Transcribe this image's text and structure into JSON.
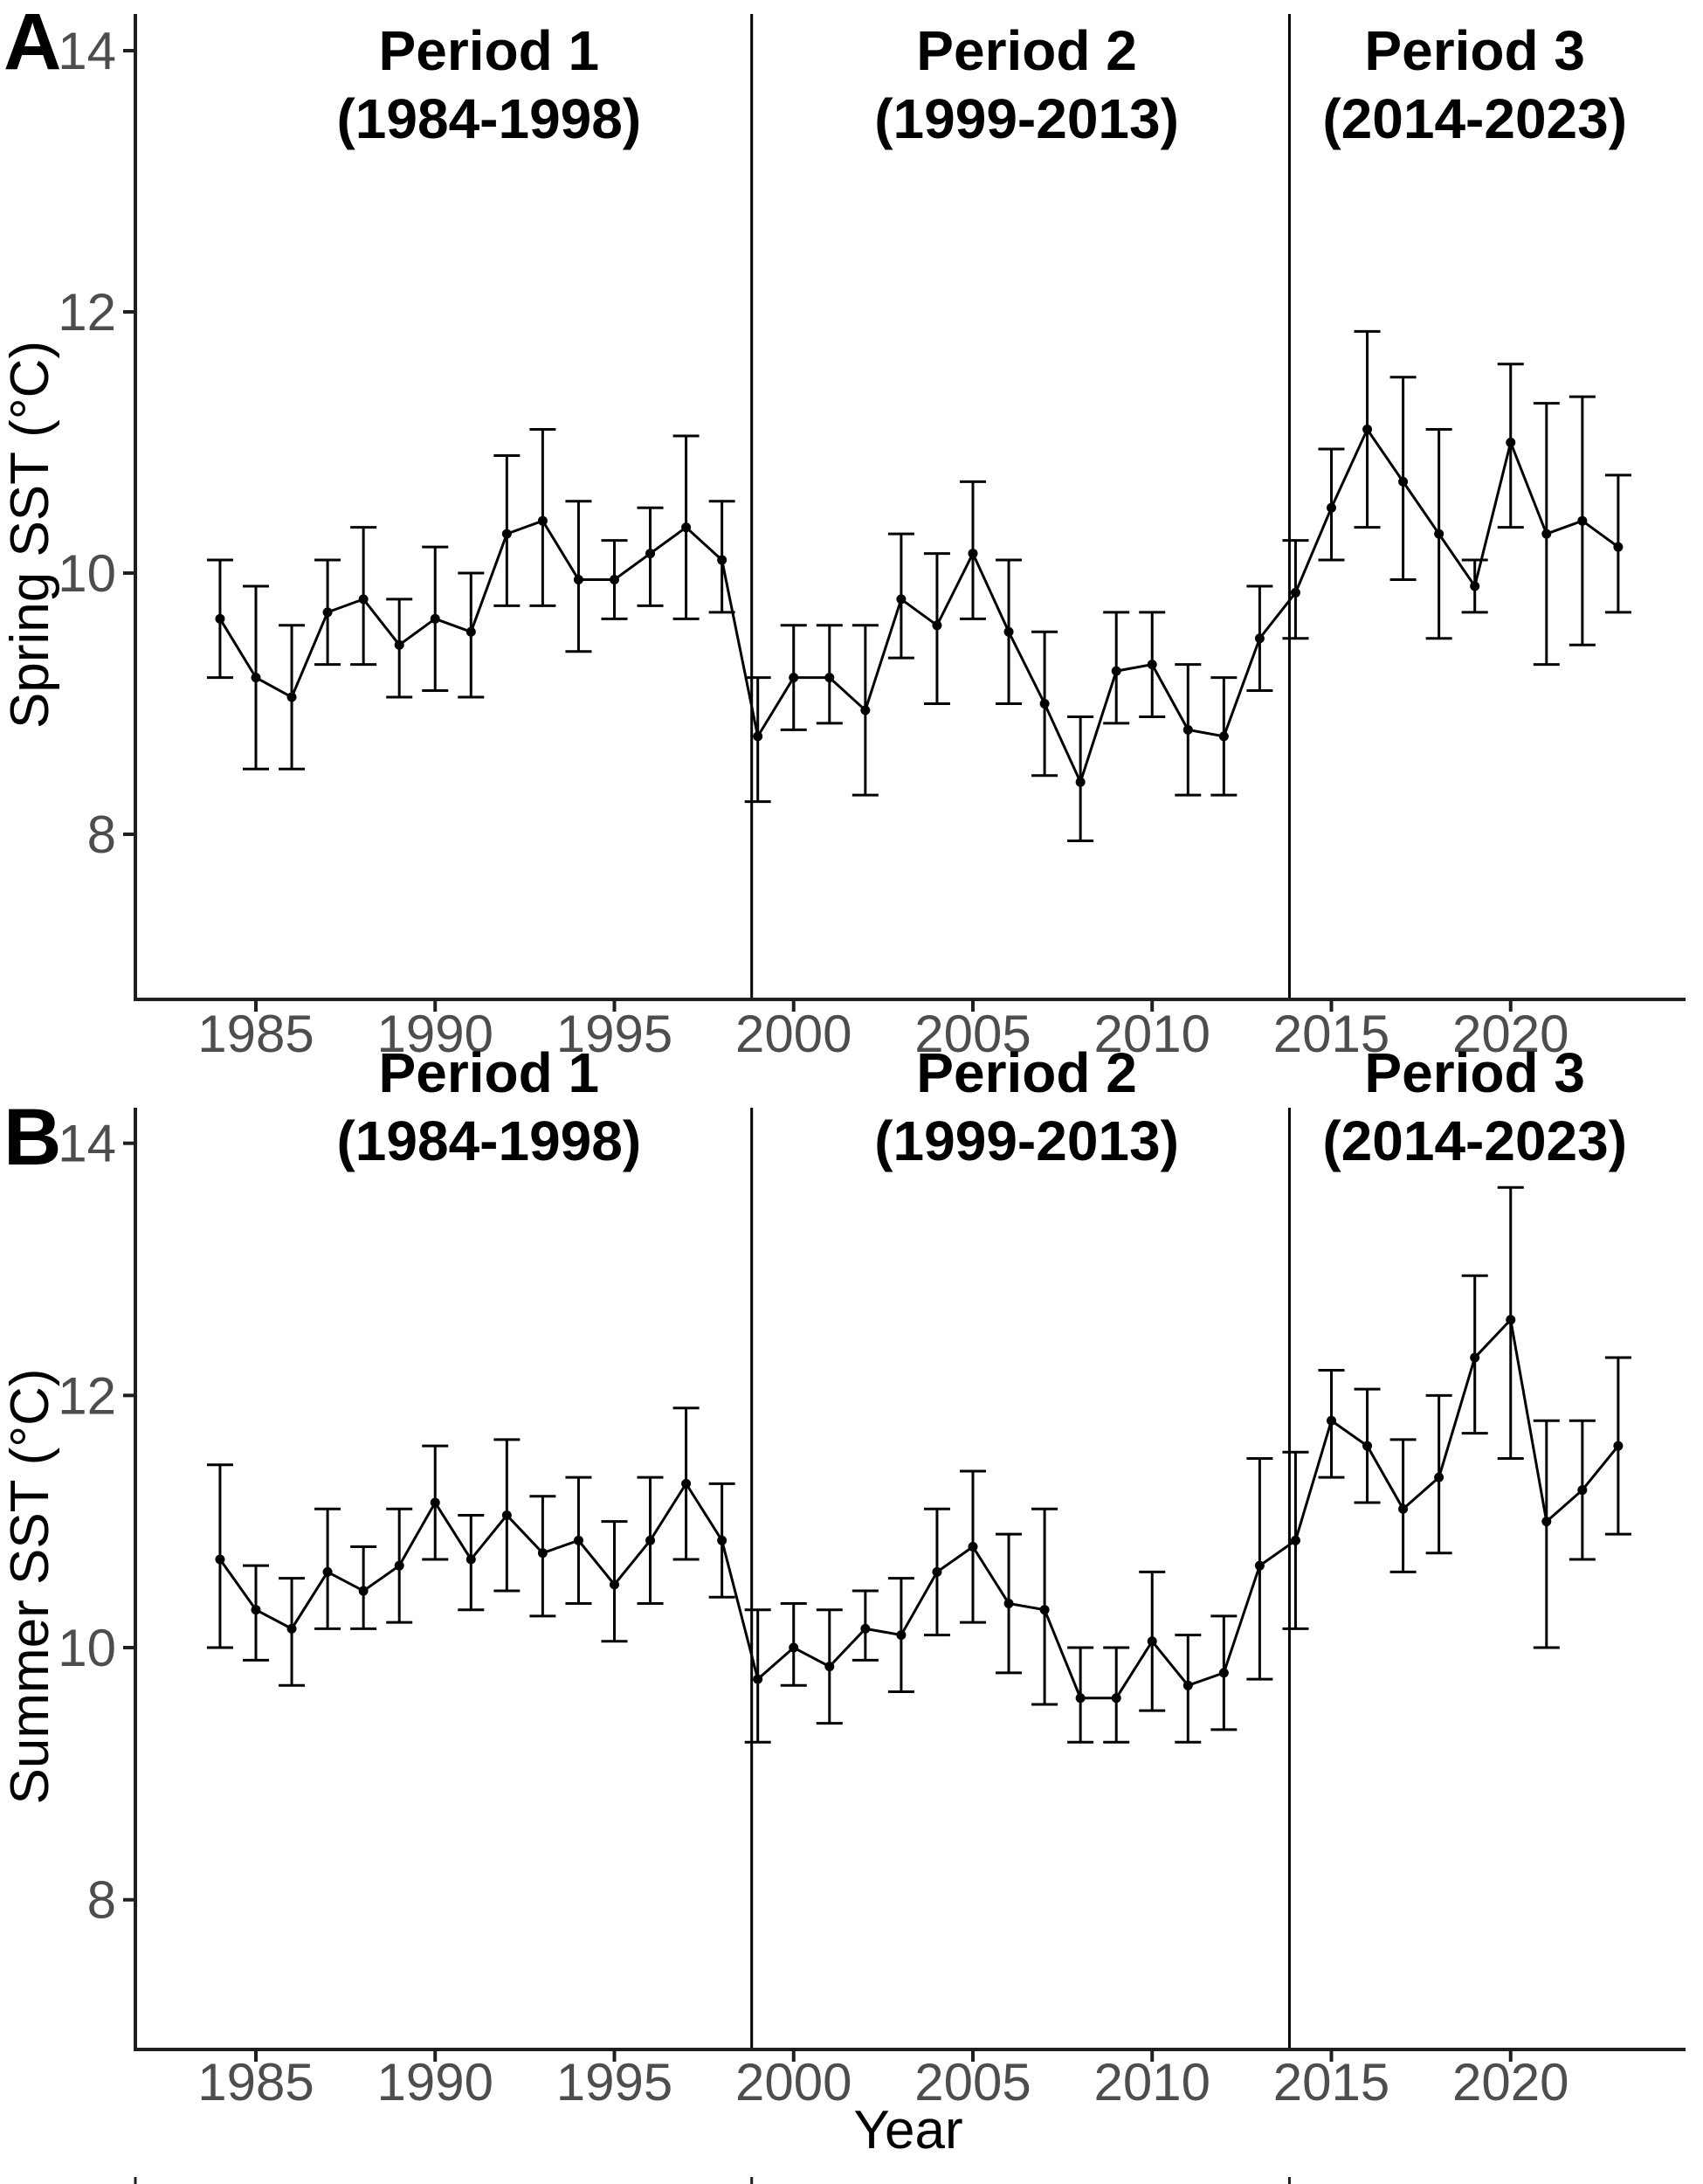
{
  "figure": {
    "panels": [
      {
        "letter": "A",
        "y_axis_title": "Spring SST (°C)"
      },
      {
        "letter": "B",
        "y_axis_title": "Summer SST (°C)"
      }
    ],
    "x_axis_title": "Year",
    "colors": {
      "data": "#000000",
      "axis": "#1f1f1f",
      "tick_label": "#4d4d4d",
      "separator": "#000000",
      "background": "#ffffff"
    }
  },
  "chart_data": [
    {
      "type": "line",
      "panel": "A",
      "title": "",
      "xlabel": "",
      "ylabel": "Spring SST (°C)",
      "x": [
        1984,
        1985,
        1986,
        1987,
        1988,
        1989,
        1990,
        1991,
        1992,
        1993,
        1994,
        1995,
        1996,
        1997,
        1998,
        1999,
        2000,
        2001,
        2002,
        2003,
        2004,
        2005,
        2006,
        2007,
        2008,
        2009,
        2010,
        2011,
        2012,
        2013,
        2014,
        2015,
        2016,
        2017,
        2018,
        2019,
        2020,
        2021,
        2022,
        2023
      ],
      "series": [
        {
          "name": "Spring SST mean",
          "values": [
            9.65,
            9.2,
            9.05,
            9.7,
            9.8,
            9.45,
            9.65,
            9.55,
            10.3,
            10.4,
            9.95,
            9.95,
            10.15,
            10.35,
            10.1,
            8.75,
            9.2,
            9.2,
            8.95,
            9.8,
            9.6,
            10.15,
            9.55,
            9.0,
            8.4,
            9.25,
            9.3,
            8.8,
            8.75,
            9.5,
            9.85,
            10.5,
            11.1,
            10.7,
            10.3,
            9.9,
            11.0,
            10.3,
            10.4,
            10.2
          ]
        },
        {
          "name": "upper error bound",
          "values": [
            10.1,
            9.9,
            9.6,
            10.1,
            10.35,
            9.8,
            10.2,
            10.0,
            10.9,
            11.1,
            10.55,
            10.25,
            10.5,
            11.05,
            10.55,
            9.2,
            9.6,
            9.6,
            9.6,
            10.3,
            10.15,
            10.7,
            10.1,
            9.55,
            8.9,
            9.7,
            9.7,
            9.3,
            9.2,
            9.9,
            10.25,
            10.95,
            11.85,
            11.5,
            11.1,
            10.1,
            11.6,
            11.3,
            11.35,
            10.75
          ]
        },
        {
          "name": "lower error bound",
          "values": [
            9.2,
            8.5,
            8.5,
            9.3,
            9.3,
            9.05,
            9.1,
            9.05,
            9.75,
            9.75,
            9.4,
            9.65,
            9.75,
            9.65,
            9.7,
            8.25,
            8.8,
            8.85,
            8.3,
            9.35,
            9.0,
            9.65,
            9.0,
            8.45,
            7.95,
            8.85,
            8.9,
            8.3,
            8.3,
            9.1,
            9.5,
            10.1,
            10.35,
            9.95,
            9.5,
            9.7,
            10.35,
            9.3,
            9.45,
            9.7
          ]
        }
      ],
      "y_ticks": [
        14,
        12,
        10,
        8
      ],
      "x_ticks": [
        1985,
        1990,
        1995,
        2000,
        2005,
        2010,
        2015,
        2020
      ],
      "ylim": [
        6.7,
        14.3
      ],
      "xlim": [
        1981.6,
        2024.9
      ],
      "grid": false,
      "legend": "none",
      "separators_x": [
        1999.0,
        2014.0
      ],
      "period_headers": [
        {
          "line1": "Period 1",
          "line2": "(1984-1998)",
          "center_x": 1991.5
        },
        {
          "line1": "Period 2",
          "line2": "(1999-2013)",
          "center_x": 2006.5
        },
        {
          "line1": "Period 3",
          "line2": "(2014-2023)",
          "center_x": 2019.0
        }
      ]
    },
    {
      "type": "line",
      "panel": "B",
      "title": "",
      "xlabel": "Year",
      "ylabel": "Summer SST (°C)",
      "x": [
        1984,
        1985,
        1986,
        1987,
        1988,
        1989,
        1990,
        1991,
        1992,
        1993,
        1994,
        1995,
        1996,
        1997,
        1998,
        1999,
        2000,
        2001,
        2002,
        2003,
        2004,
        2005,
        2006,
        2007,
        2008,
        2009,
        2010,
        2011,
        2012,
        2013,
        2014,
        2015,
        2016,
        2017,
        2018,
        2019,
        2020,
        2021,
        2022,
        2023
      ],
      "series": [
        {
          "name": "Summer SST mean",
          "values": [
            10.7,
            10.3,
            10.15,
            10.6,
            10.45,
            10.65,
            11.15,
            10.7,
            11.05,
            10.75,
            10.85,
            10.5,
            10.85,
            11.3,
            10.85,
            9.75,
            10.0,
            9.85,
            10.15,
            10.1,
            10.6,
            10.8,
            10.35,
            10.3,
            9.6,
            9.6,
            10.05,
            9.7,
            9.8,
            10.65,
            10.85,
            11.8,
            11.6,
            11.1,
            11.35,
            12.3,
            12.6,
            11.0,
            11.25,
            11.6
          ]
        },
        {
          "name": "upper error bound",
          "values": [
            11.45,
            10.65,
            10.55,
            11.1,
            10.8,
            11.1,
            11.6,
            11.05,
            11.65,
            11.2,
            11.35,
            11.0,
            11.35,
            11.9,
            11.3,
            10.3,
            10.35,
            10.3,
            10.45,
            10.55,
            11.1,
            11.4,
            10.9,
            11.1,
            10.0,
            10.0,
            10.6,
            10.1,
            10.25,
            11.5,
            11.55,
            12.2,
            12.05,
            11.65,
            12.0,
            12.95,
            13.65,
            11.8,
            11.8,
            12.3
          ]
        },
        {
          "name": "lower error bound",
          "values": [
            10.0,
            9.9,
            9.7,
            10.15,
            10.15,
            10.2,
            10.7,
            10.3,
            10.45,
            10.25,
            10.35,
            10.05,
            10.35,
            10.7,
            10.4,
            9.25,
            9.7,
            9.4,
            9.9,
            9.65,
            10.1,
            10.2,
            9.8,
            9.55,
            9.25,
            9.25,
            9.5,
            9.25,
            9.35,
            9.75,
            10.15,
            11.35,
            11.15,
            10.6,
            10.75,
            11.7,
            11.5,
            10.0,
            10.7,
            10.9
          ]
        }
      ],
      "y_ticks": [
        14,
        12,
        10,
        8
      ],
      "x_ticks": [
        1985,
        1990,
        1995,
        2000,
        2005,
        2010,
        2015,
        2020
      ],
      "ylim": [
        6.8,
        14.3
      ],
      "xlim": [
        1981.6,
        2024.9
      ],
      "grid": false,
      "legend": "none",
      "separators_x": [
        1999.0,
        2014.0
      ],
      "period_headers": [
        {
          "line1": "Period 1",
          "line2": "(1984-1998)",
          "center_x": 1991.5
        },
        {
          "line1": "Period 2",
          "line2": "(1999-2013)",
          "center_x": 2006.5
        },
        {
          "line1": "Period 3",
          "line2": "(2014-2023)",
          "center_x": 2019.0
        }
      ]
    }
  ]
}
